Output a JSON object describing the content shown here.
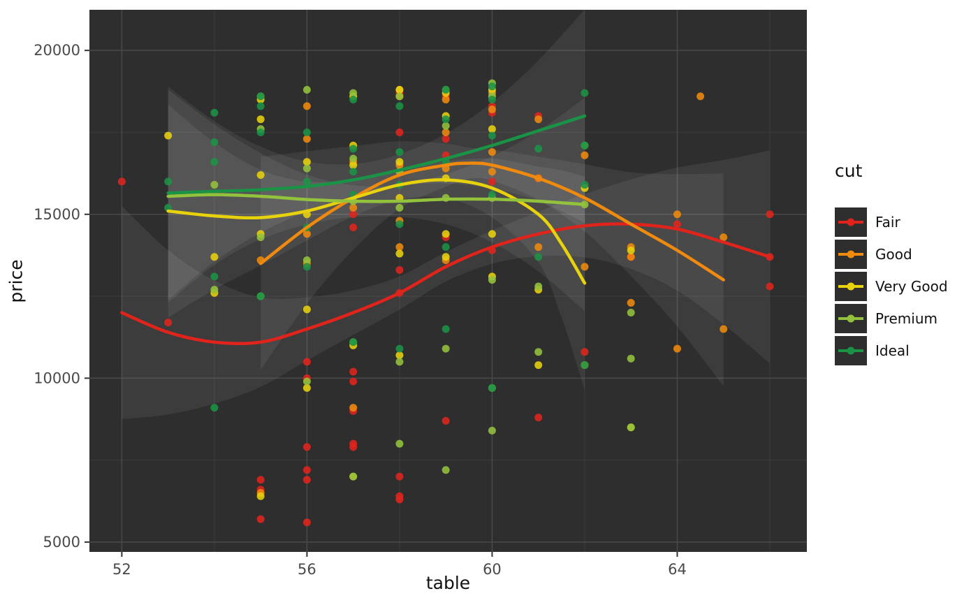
{
  "chart_data": {
    "type": "scatter",
    "title": "",
    "xlabel": "table",
    "ylabel": "price",
    "legend_title": "cut",
    "legend_position": "right",
    "grid": true,
    "xlim": [
      51.3,
      66.8
    ],
    "ylim": [
      4700,
      21240
    ],
    "x_ticks": [
      52,
      56,
      60,
      64
    ],
    "x_minor_ticks": [
      54,
      58,
      62,
      66
    ],
    "y_ticks": [
      5000,
      10000,
      15000,
      20000
    ],
    "y_minor_ticks": [
      7500,
      12500,
      17500
    ],
    "colors": {
      "plot_bg": "#2e2e2e",
      "grid_major": "#484848",
      "grid_minor": "#3a3a3a",
      "ribbon": "rgba(255,255,255,0.07)",
      "tick_text": "#4a4a4a",
      "tick_mark": "#333333"
    },
    "series": [
      {
        "name": "Fair",
        "color": "#e0241c",
        "points": [
          [
            52,
            16000
          ],
          [
            53,
            11700
          ],
          [
            55,
            6900
          ],
          [
            55,
            6600
          ],
          [
            55,
            5700
          ],
          [
            56,
            10500
          ],
          [
            56,
            10000
          ],
          [
            56,
            7900
          ],
          [
            56,
            7200
          ],
          [
            56,
            6900
          ],
          [
            56,
            5600
          ],
          [
            57,
            15000
          ],
          [
            57,
            14600
          ],
          [
            57,
            10200
          ],
          [
            57,
            9900
          ],
          [
            57,
            9000
          ],
          [
            57,
            8000
          ],
          [
            57,
            7900
          ],
          [
            58,
            18700
          ],
          [
            58,
            17500
          ],
          [
            58,
            13300
          ],
          [
            58,
            12600
          ],
          [
            58,
            7000
          ],
          [
            58,
            6400
          ],
          [
            58,
            6300
          ],
          [
            59,
            18600
          ],
          [
            59,
            17300
          ],
          [
            59,
            16800
          ],
          [
            59,
            14300
          ],
          [
            59,
            8700
          ],
          [
            60,
            18300
          ],
          [
            60,
            18100
          ],
          [
            60,
            16000
          ],
          [
            60,
            13900
          ],
          [
            61,
            18000
          ],
          [
            61,
            16100
          ],
          [
            61,
            8800
          ],
          [
            62,
            10800
          ],
          [
            62,
            10400
          ],
          [
            63,
            13700
          ],
          [
            64,
            14700
          ],
          [
            66,
            15000
          ],
          [
            66,
            13700
          ],
          [
            66,
            12800
          ]
        ],
        "trend": [
          [
            52,
            12000
          ],
          [
            53,
            11400
          ],
          [
            54,
            11100
          ],
          [
            55,
            11100
          ],
          [
            56,
            11500
          ],
          [
            57,
            12000
          ],
          [
            58,
            12600
          ],
          [
            59,
            13400
          ],
          [
            60,
            14000
          ],
          [
            61,
            14400
          ],
          [
            62,
            14650
          ],
          [
            63,
            14700
          ],
          [
            64,
            14550
          ],
          [
            65,
            14150
          ],
          [
            66,
            13700
          ]
        ]
      },
      {
        "name": "Good",
        "color": "#ef8a0e",
        "points": [
          [
            55,
            13600
          ],
          [
            55,
            6500
          ],
          [
            56,
            18300
          ],
          [
            56,
            17300
          ],
          [
            56,
            14400
          ],
          [
            56,
            13500
          ],
          [
            57,
            16600
          ],
          [
            57,
            15200
          ],
          [
            57,
            9100
          ],
          [
            58,
            18800
          ],
          [
            58,
            18600
          ],
          [
            58,
            16500
          ],
          [
            58,
            14800
          ],
          [
            58,
            14000
          ],
          [
            59,
            18500
          ],
          [
            59,
            17500
          ],
          [
            59,
            16400
          ],
          [
            59,
            13600
          ],
          [
            60,
            18700
          ],
          [
            60,
            18200
          ],
          [
            60,
            16900
          ],
          [
            60,
            16300
          ],
          [
            61,
            17900
          ],
          [
            61,
            16100
          ],
          [
            61,
            14000
          ],
          [
            62,
            16800
          ],
          [
            62,
            13400
          ],
          [
            63,
            14000
          ],
          [
            63,
            13700
          ],
          [
            63,
            12300
          ],
          [
            64,
            15000
          ],
          [
            64,
            10900
          ],
          [
            64.5,
            18600
          ],
          [
            65,
            11500
          ],
          [
            65,
            14300
          ]
        ],
        "trend": [
          [
            55,
            13500
          ],
          [
            56,
            14600
          ],
          [
            57,
            15500
          ],
          [
            58,
            16200
          ],
          [
            59,
            16500
          ],
          [
            59.5,
            16560
          ],
          [
            60,
            16500
          ],
          [
            61,
            16100
          ],
          [
            62,
            15500
          ],
          [
            63,
            14700
          ],
          [
            64,
            13900
          ],
          [
            65,
            13000
          ]
        ]
      },
      {
        "name": "Very Good",
        "color": "#e8d20c",
        "points": [
          [
            53,
            17400
          ],
          [
            54,
            13700
          ],
          [
            54,
            12600
          ],
          [
            55,
            18500
          ],
          [
            55,
            17900
          ],
          [
            55,
            16200
          ],
          [
            55,
            14400
          ],
          [
            55,
            6400
          ],
          [
            56,
            16600
          ],
          [
            56,
            15000
          ],
          [
            56,
            12100
          ],
          [
            56,
            9700
          ],
          [
            57,
            18600
          ],
          [
            57,
            17100
          ],
          [
            57,
            16500
          ],
          [
            57,
            11000
          ],
          [
            57,
            7000
          ],
          [
            58,
            18800
          ],
          [
            58,
            16600
          ],
          [
            58,
            15500
          ],
          [
            58,
            13800
          ],
          [
            58,
            10700
          ],
          [
            59,
            18700
          ],
          [
            59,
            18000
          ],
          [
            59,
            16100
          ],
          [
            59,
            14400
          ],
          [
            59,
            13700
          ],
          [
            60,
            18800
          ],
          [
            60,
            17600
          ],
          [
            60,
            14400
          ],
          [
            60,
            13100
          ],
          [
            61,
            12700
          ],
          [
            61,
            10400
          ],
          [
            62,
            15800
          ],
          [
            62,
            10400
          ],
          [
            63,
            13900
          ],
          [
            63,
            8500
          ]
        ],
        "trend": [
          [
            53,
            15100
          ],
          [
            54,
            14950
          ],
          [
            55,
            14900
          ],
          [
            56,
            15100
          ],
          [
            57,
            15500
          ],
          [
            58,
            15900
          ],
          [
            59,
            16050
          ],
          [
            60,
            15800
          ],
          [
            61,
            15000
          ],
          [
            61.5,
            14100
          ],
          [
            62,
            12900
          ]
        ]
      },
      {
        "name": "Premium",
        "color": "#93c33c",
        "points": [
          [
            54,
            15900
          ],
          [
            54,
            12700
          ],
          [
            55,
            18600
          ],
          [
            55,
            17600
          ],
          [
            55,
            14300
          ],
          [
            55,
            12500
          ],
          [
            56,
            18800
          ],
          [
            56,
            16400
          ],
          [
            56,
            13600
          ],
          [
            56,
            9900
          ],
          [
            57,
            18700
          ],
          [
            57,
            16700
          ],
          [
            57,
            15400
          ],
          [
            57,
            11100
          ],
          [
            57,
            7000
          ],
          [
            58,
            18600
          ],
          [
            58,
            16300
          ],
          [
            58,
            15200
          ],
          [
            58,
            10500
          ],
          [
            58,
            8000
          ],
          [
            59,
            18800
          ],
          [
            59,
            17700
          ],
          [
            59,
            15500
          ],
          [
            59,
            10900
          ],
          [
            59,
            7200
          ],
          [
            60,
            19000
          ],
          [
            60,
            18600
          ],
          [
            60,
            15500
          ],
          [
            60,
            13000
          ],
          [
            60,
            9700
          ],
          [
            60,
            8400
          ],
          [
            61,
            12800
          ],
          [
            61,
            10800
          ],
          [
            62,
            17100
          ],
          [
            62,
            15300
          ],
          [
            63,
            12000
          ],
          [
            63,
            10600
          ],
          [
            63,
            8500
          ]
        ],
        "trend": [
          [
            53,
            15550
          ],
          [
            54,
            15600
          ],
          [
            55,
            15550
          ],
          [
            56,
            15450
          ],
          [
            57,
            15400
          ],
          [
            58,
            15400
          ],
          [
            59,
            15460
          ],
          [
            60,
            15460
          ],
          [
            61,
            15400
          ],
          [
            62,
            15300
          ]
        ]
      },
      {
        "name": "Ideal",
        "color": "#1a9346",
        "points": [
          [
            53,
            16000
          ],
          [
            53,
            15200
          ],
          [
            54,
            18100
          ],
          [
            54,
            17200
          ],
          [
            54,
            16600
          ],
          [
            54,
            13100
          ],
          [
            54,
            9100
          ],
          [
            55,
            18600
          ],
          [
            55,
            18300
          ],
          [
            55,
            17500
          ],
          [
            55,
            12500
          ],
          [
            56,
            17500
          ],
          [
            56,
            16000
          ],
          [
            56,
            14600
          ],
          [
            56,
            13400
          ],
          [
            57,
            18500
          ],
          [
            57,
            17000
          ],
          [
            57,
            16300
          ],
          [
            57,
            15600
          ],
          [
            57,
            11100
          ],
          [
            58,
            18300
          ],
          [
            58,
            16900
          ],
          [
            58,
            15900
          ],
          [
            58,
            14700
          ],
          [
            58,
            10900
          ],
          [
            59,
            18800
          ],
          [
            59,
            17900
          ],
          [
            59,
            16600
          ],
          [
            59,
            14000
          ],
          [
            59,
            11500
          ],
          [
            60,
            18900
          ],
          [
            60,
            18500
          ],
          [
            60,
            17400
          ],
          [
            60,
            15600
          ],
          [
            60,
            9700
          ],
          [
            61,
            17000
          ],
          [
            61,
            13700
          ],
          [
            62,
            18700
          ],
          [
            62,
            17100
          ],
          [
            62,
            15900
          ],
          [
            62,
            10400
          ]
        ],
        "trend": [
          [
            53,
            15650
          ],
          [
            54,
            15700
          ],
          [
            55,
            15750
          ],
          [
            56,
            15850
          ],
          [
            57,
            16050
          ],
          [
            58,
            16350
          ],
          [
            59,
            16700
          ],
          [
            60,
            17100
          ],
          [
            61,
            17550
          ],
          [
            62,
            18000
          ]
        ]
      }
    ]
  }
}
